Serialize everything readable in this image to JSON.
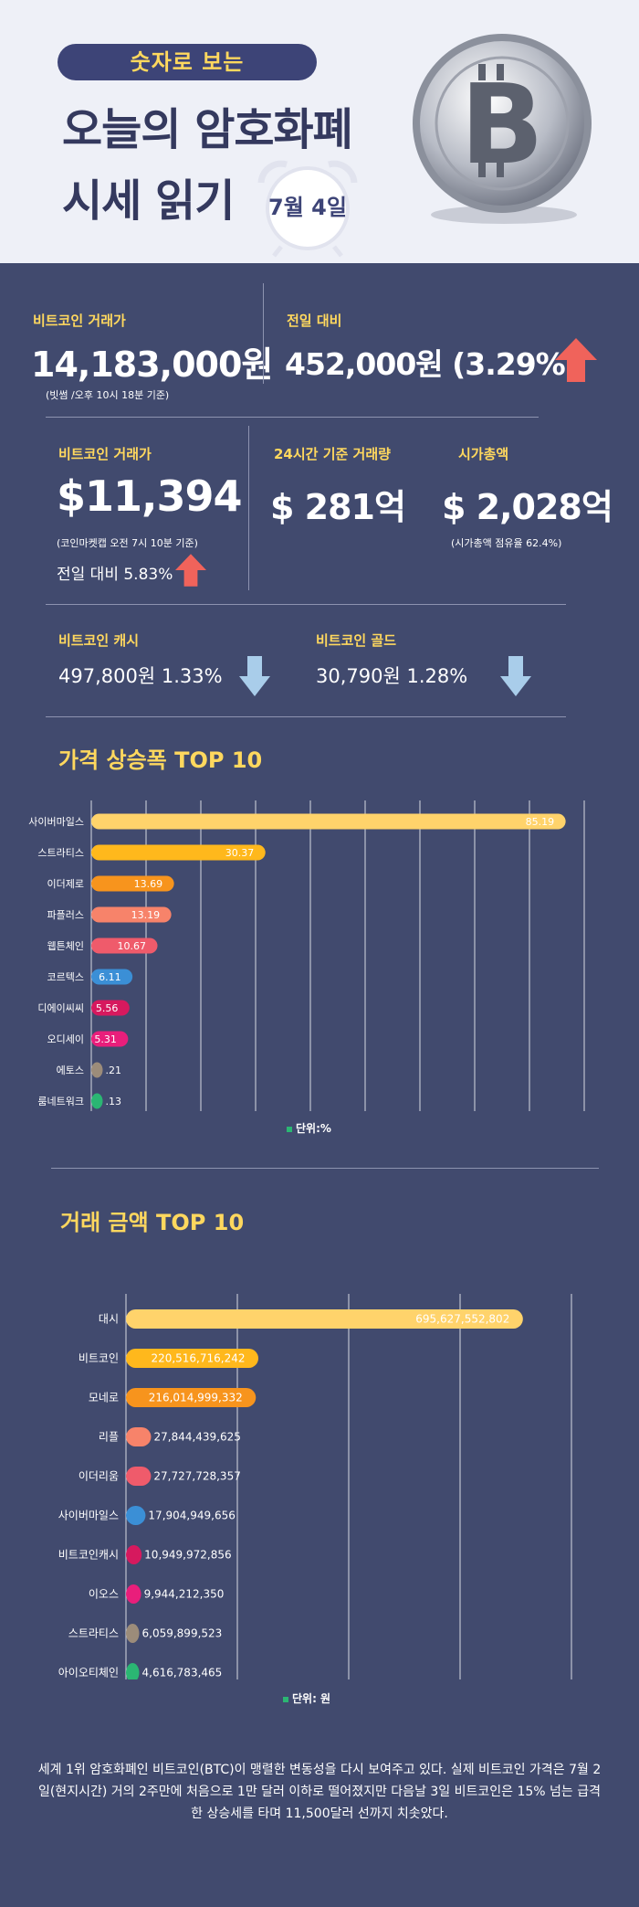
{
  "header": {
    "pill": "숫자로 보는",
    "title_line1": "오늘의 암호화폐",
    "title_line2": "시세 읽기",
    "date": "7월 4일"
  },
  "stats": {
    "btc_krw_label": "비트코인 거래가",
    "btc_krw_value": "14,183,000원",
    "btc_krw_note": "(빗썸 /오후 10시 18분 기준)",
    "prev_label": "전일 대비",
    "prev_value": "452,000원 (3.29%)",
    "btc_usd_label": "비트코인 거래가",
    "btc_usd_value": "$11,394",
    "btc_usd_note": "(코인마켓캡 오전 7시 10분 기준)",
    "btc_usd_change": "전일 대비 5.83%",
    "vol_label": "24시간 기준 거래량",
    "vol_value": "$ 281억",
    "cap_label": "시가총액",
    "cap_value": "$ 2,028억",
    "cap_note": "(시가총액 점유율 62.4%)",
    "bch_label": "비트코인 캐시",
    "bch_value": "497,800원  1.33%",
    "btg_label": "비트코인 골드",
    "btg_value": "30,790원   1.28%"
  },
  "colors": {
    "background": "#414a6e",
    "accent_yellow": "#ffd85e",
    "up_arrow": "#f0635b",
    "down_arrow": "#a9cdea"
  },
  "chart_data": [
    {
      "type": "bar",
      "title": "가격 상승폭 TOP 10",
      "unit_label": "단위:%",
      "categories": [
        "사이버마일스",
        "스트라티스",
        "이더제로",
        "파플러스",
        "웹튼체인",
        "코르텍스",
        "디에이씨씨",
        "오디세이",
        "에토스",
        "룸네트워크"
      ],
      "values": [
        85.19,
        30.37,
        13.69,
        13.19,
        10.67,
        6.11,
        5.56,
        5.31,
        0.21,
        0.13
      ],
      "labels": [
        "85.19",
        "30.37",
        "13.69",
        "13.19",
        "10.67",
        "6.11",
        "5.56",
        "5.31",
        ".21",
        ".13"
      ],
      "colors": [
        "#ffd36b",
        "#ffb81c",
        "#f7941d",
        "#f7836a",
        "#ef5b6b",
        "#3b8fd6",
        "#d6195e",
        "#e91e7b",
        "#9c8c7a",
        "#2bb673"
      ],
      "xlim": [
        0,
        90
      ]
    },
    {
      "type": "bar",
      "title": "거래 금액 TOP 10",
      "unit_label": "단위: 원",
      "categories": [
        "대시",
        "비트코인",
        "모네로",
        "리플",
        "이더리움",
        "사이버마일스",
        "비트코인캐시",
        "이오스",
        "스트라티스",
        "아이오티체인"
      ],
      "values": [
        695627552802,
        220516716242,
        216014999332,
        27844439625,
        27727728357,
        17904949656,
        10949972856,
        9944212350,
        6059899523,
        4616783465
      ],
      "labels": [
        "695,627,552,802",
        "220,516,716,242",
        "216,014,999,332",
        "27,844,439,625",
        "27,727,728,357",
        "17,904,949,656",
        "10,949,972,856",
        "9,944,212,350",
        "6,059,899,523",
        "4,616,783,465"
      ],
      "colors": [
        "#ffd36b",
        "#ffb81c",
        "#f7941d",
        "#f7836a",
        "#ef5b6b",
        "#3b8fd6",
        "#d6195e",
        "#e91e7b",
        "#9c8c7a",
        "#2bb673"
      ],
      "xlim": [
        0,
        800000000000
      ]
    }
  ],
  "footer": "세계 1위 암호화폐인 비트코인(BTC)이 맹렬한 변동성을 다시 보여주고 있다. 실제 비트코인 가격은 7월 2일(현지시간) 거의 2주만에 처음으로 1만 달러 이하로 떨어졌지만 다음날 3일 비트코인은 15% 넘는 급격한 상승세를 타며 11,500달러 선까지 치솟았다."
}
